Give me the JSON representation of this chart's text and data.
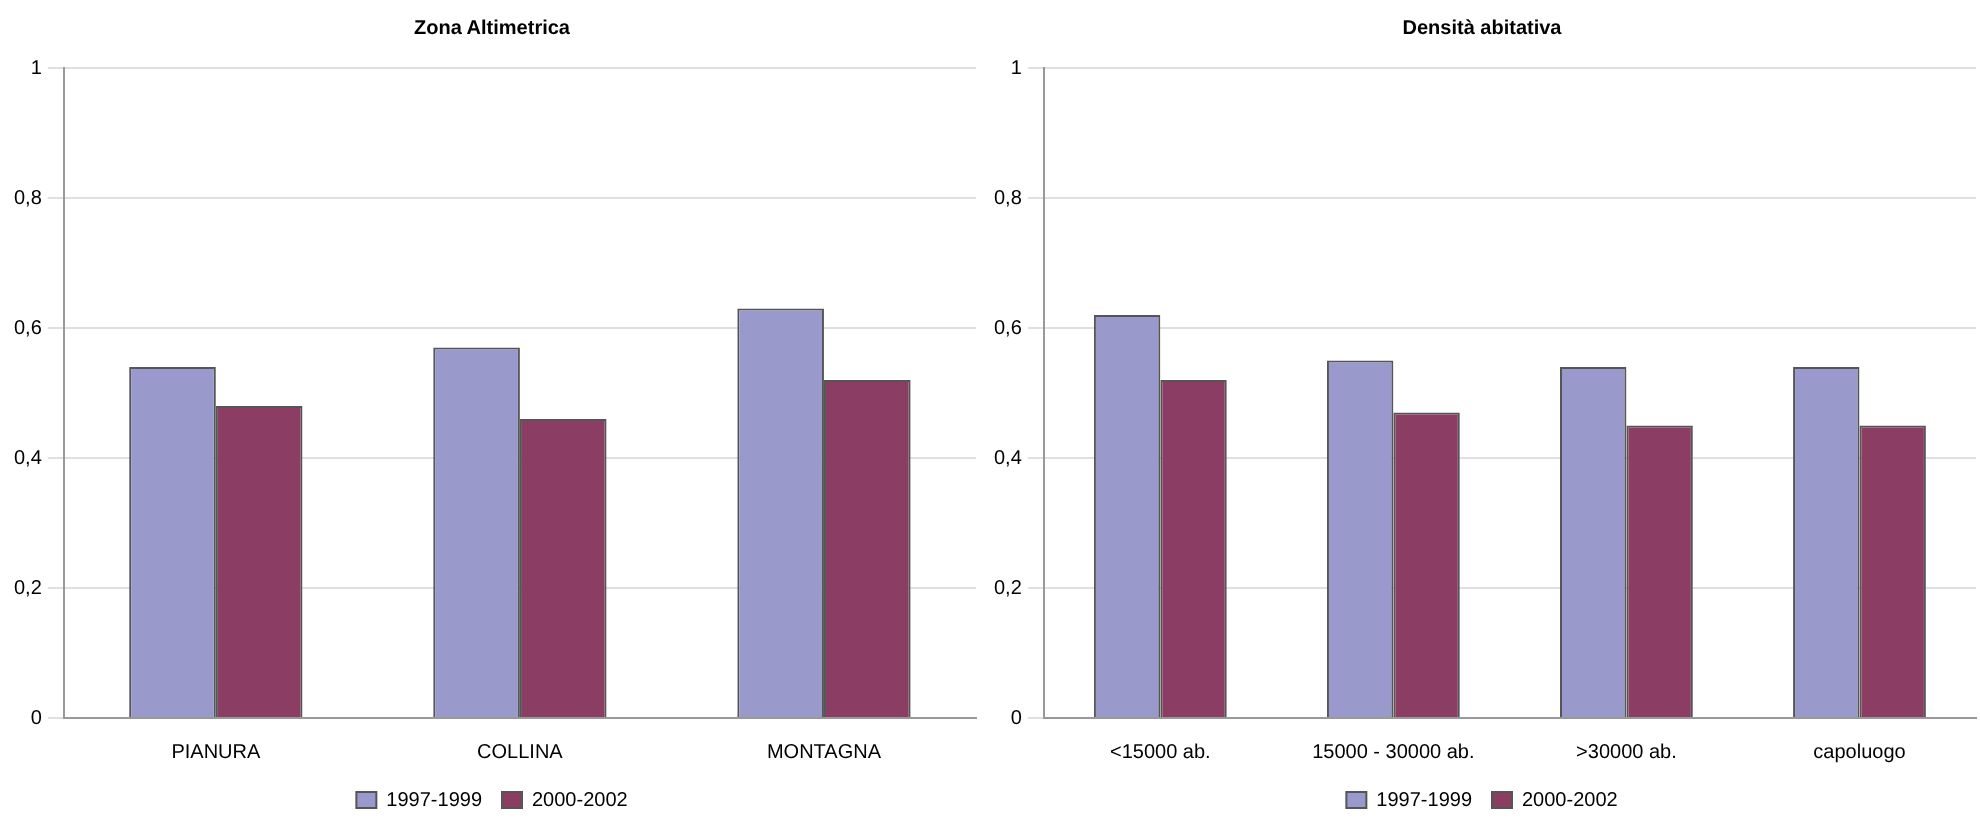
{
  "chart_data": [
    {
      "type": "bar",
      "title": "Zona Altimetrica",
      "categories": [
        "PIANURA",
        "COLLINA",
        "MONTAGNA"
      ],
      "series": [
        {
          "name": "1997-1999",
          "color": "#9999cc",
          "values": [
            0.54,
            0.57,
            0.63
          ]
        },
        {
          "name": "2000-2002",
          "color": "#8b3d64",
          "values": [
            0.48,
            0.46,
            0.52
          ]
        }
      ],
      "ylim": [
        0,
        1
      ],
      "yticks": [
        {
          "value": 0,
          "label": "0"
        },
        {
          "value": 0.2,
          "label": "0,2"
        },
        {
          "value": 0.4,
          "label": "0,4"
        },
        {
          "value": 0.6,
          "label": "0,6"
        },
        {
          "value": 0.8,
          "label": "0,8"
        },
        {
          "value": 1,
          "label": "1"
        }
      ],
      "grid": "y",
      "legend": "bottom"
    },
    {
      "type": "bar",
      "title": "Densità abitativa",
      "categories": [
        "<15000 ab.",
        "15000 - 30000 ab.",
        ">30000 ab.",
        "capoluogo"
      ],
      "series": [
        {
          "name": "1997-1999",
          "color": "#9999cc",
          "values": [
            0.62,
            0.55,
            0.54,
            0.54
          ]
        },
        {
          "name": "2000-2002",
          "color": "#8b3d64",
          "values": [
            0.52,
            0.47,
            0.45,
            0.45
          ]
        }
      ],
      "ylim": [
        0,
        1
      ],
      "yticks": [
        {
          "value": 0,
          "label": "0"
        },
        {
          "value": 0.2,
          "label": "0,2"
        },
        {
          "value": 0.4,
          "label": "0,4"
        },
        {
          "value": 0.6,
          "label": "0,6"
        },
        {
          "value": 0.8,
          "label": "0,8"
        },
        {
          "value": 1,
          "label": "1"
        }
      ],
      "grid": "y",
      "legend": "bottom"
    }
  ]
}
